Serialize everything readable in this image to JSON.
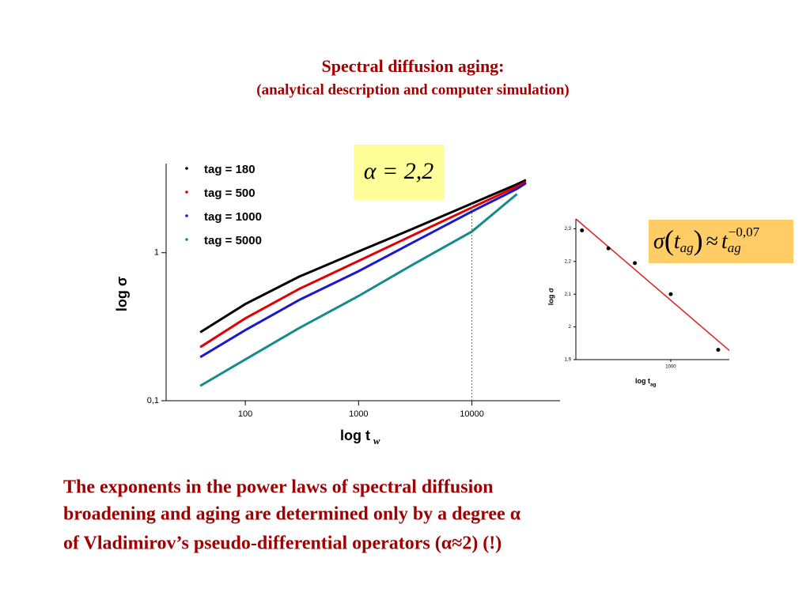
{
  "title": "Spectral diffusion aging:",
  "subtitle": "(analytical description and computer simulation)",
  "alpha_box": "α = 2,2",
  "sigma_box": {
    "base": "σ",
    "arg": "t",
    "arg_sub": "ag",
    "approx": "≈",
    "rhs": "t",
    "rhs_sub": "ag",
    "exponent": "−0,07"
  },
  "body": [
    "The exponents in the power laws of spectral diffusion",
    "broadening and aging are determined only by a degree α",
    "of Vladimirov’s pseudo-differential operators (α≈2) (!)"
  ],
  "chart_data": [
    {
      "type": "line",
      "log_x": true,
      "log_y": true,
      "x_label": "log t",
      "x_label_sub": "w",
      "y_label": "log σ",
      "x": [
        40,
        100,
        300,
        1000,
        3000,
        10000,
        25000,
        30000
      ],
      "xlim": [
        20,
        60000
      ],
      "xticks": [
        100,
        1000,
        10000
      ],
      "ylim": [
        0.1,
        4
      ],
      "yticks": [
        {
          "value": 0.1,
          "label": "0,1"
        },
        1
      ],
      "reference_x": 10000,
      "series": [
        {
          "name": "tag = 180",
          "color": "#000000",
          "values": [
            0.29,
            0.45,
            0.69,
            1.02,
            1.45,
            2.15,
            2.9,
            3.1
          ]
        },
        {
          "name": "tag = 500",
          "color": "#e00000",
          "values": [
            0.23,
            0.36,
            0.57,
            0.88,
            1.31,
            2.02,
            2.8,
            3.0
          ]
        },
        {
          "name": "tag = 1000",
          "color": "#1a1acc",
          "values": [
            0.197,
            0.3,
            0.48,
            0.75,
            1.17,
            1.9,
            2.7,
            2.95
          ]
        },
        {
          "name": "tag = 5000",
          "color": "#178a8a",
          "values": [
            0.126,
            0.19,
            0.31,
            0.51,
            0.83,
            1.39,
            2.49,
            null
          ]
        }
      ]
    },
    {
      "type": "scatter",
      "log_x": true,
      "x_label": "log t",
      "x_label_sub": "ag",
      "y_label": "log σ",
      "x": [
        180,
        300,
        500,
        1000,
        2500
      ],
      "values": [
        2.295,
        2.24,
        2.195,
        2.1,
        1.93
      ],
      "color": "#000000",
      "xlim": [
        160,
        3100
      ],
      "xticks": [
        1000
      ],
      "ylim": [
        1.9,
        2.33
      ],
      "yticks": [
        {
          "value": 1.9,
          "label": "1,9"
        },
        2,
        {
          "value": 2.1,
          "label": "2,1"
        },
        {
          "value": 2.2,
          "label": "2,2"
        },
        {
          "value": 2.3,
          "label": "2,3"
        }
      ],
      "fit": {
        "color": "#e02020",
        "x": [
          160,
          3100
        ],
        "y": [
          2.33,
          1.928
        ]
      }
    }
  ]
}
